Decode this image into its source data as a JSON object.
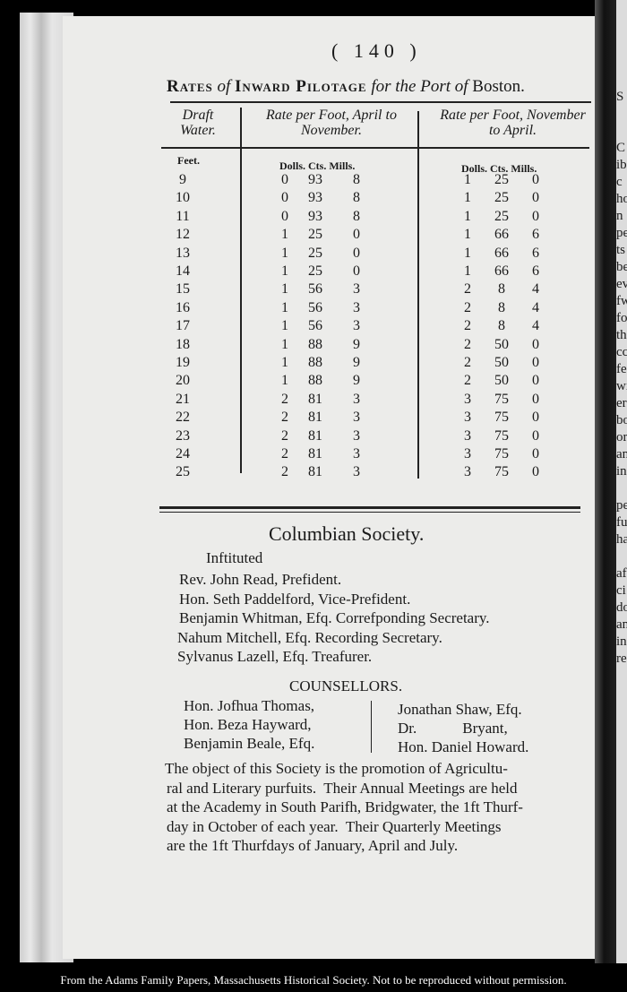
{
  "page_number": "( 140 )",
  "table": {
    "title_parts": [
      "Rates",
      " of ",
      "Inward Pilotage",
      " for the Port of ",
      "Boston."
    ],
    "headers": [
      "Draft Water.",
      "Rate per Foot, April to November.",
      "Rate per Foot, November to April."
    ],
    "subheaders": [
      "Feet.",
      "Dolls. Cts. Mills.",
      "Dolls. Cts. Mills."
    ],
    "rows": [
      [
        "9",
        "0",
        "93",
        "8",
        "1",
        "25",
        "0"
      ],
      [
        "10",
        "0",
        "93",
        "8",
        "1",
        "25",
        "0"
      ],
      [
        "11",
        "0",
        "93",
        "8",
        "1",
        "25",
        "0"
      ],
      [
        "12",
        "1",
        "25",
        "0",
        "1",
        "66",
        "6"
      ],
      [
        "13",
        "1",
        "25",
        "0",
        "1",
        "66",
        "6"
      ],
      [
        "14",
        "1",
        "25",
        "0",
        "1",
        "66",
        "6"
      ],
      [
        "15",
        "1",
        "56",
        "3",
        "2",
        "8",
        "4"
      ],
      [
        "16",
        "1",
        "56",
        "3",
        "2",
        "8",
        "4"
      ],
      [
        "17",
        "1",
        "56",
        "3",
        "2",
        "8",
        "4"
      ],
      [
        "18",
        "1",
        "88",
        "9",
        "2",
        "50",
        "0"
      ],
      [
        "19",
        "1",
        "88",
        "9",
        "2",
        "50",
        "0"
      ],
      [
        "20",
        "1",
        "88",
        "9",
        "2",
        "50",
        "0"
      ],
      [
        "21",
        "2",
        "81",
        "3",
        "3",
        "75",
        "0"
      ],
      [
        "22",
        "2",
        "81",
        "3",
        "3",
        "75",
        "0"
      ],
      [
        "23",
        "2",
        "81",
        "3",
        "3",
        "75",
        "0"
      ],
      [
        "24",
        "2",
        "81",
        "3",
        "3",
        "75",
        "0"
      ],
      [
        "25",
        "2",
        "81",
        "3",
        "3",
        "75",
        "0"
      ]
    ]
  },
  "society": {
    "title": "Columbian Society.",
    "instituted": "Inftituted",
    "officers": [
      "Rev. John Read, Prefident.",
      "Hon. Seth Paddelford, Vice-Prefident.",
      "Benjamin Whitman, Efq. Correfponding Secretary.",
      "Nahum Mitchell, Efq. Recording Secretary.",
      "Sylvanus Lazell, Efq. Treafurer."
    ],
    "counsellors_title": "COUNSELLORS.",
    "counsellors_left": [
      "Hon. Jofhua Thomas,",
      "Hon. Beza Hayward,",
      "Benjamin Beale, Efq."
    ],
    "counsellors_right": [
      "Jonathan Shaw, Efq.",
      "Dr.            Bryant,",
      "Hon. Daniel Howard."
    ],
    "paragraph": [
      "The object of this Society is the promotion of Agricultu-",
      "ral and Literary purfuits.  Their Annual Meetings are held",
      "at the Academy in South Parifh, Bridgwater, the 1ft Thurf-",
      "day in October of each year.  Their Quarterly Meetings",
      "are the 1ft Thurfdays of January, April and July."
    ]
  },
  "next_page_fragment": [
    "S",
    "",
    "",
    "C",
    "ib",
    "c",
    "ho",
    "n",
    "pe",
    "ts",
    "be",
    "ev",
    "fw",
    "fo",
    "th",
    "cc",
    "fe",
    "wi",
    "er",
    "bo",
    "or",
    "an",
    "in",
    "",
    "pe",
    "fu",
    "ha",
    "",
    "af",
    "ci",
    "do",
    "an",
    "in",
    "re"
  ],
  "footer": "From the Adams Family Papers, Massachusetts Historical Society. Not to be reproduced without permission."
}
